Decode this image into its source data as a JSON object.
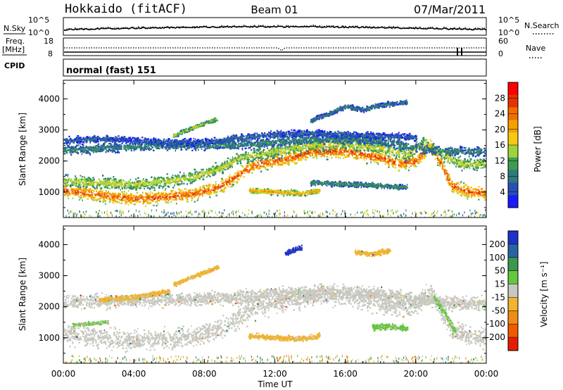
{
  "header": {
    "station": "Hokkaido (fitACF)",
    "beam": "Beam 01",
    "date": "07/Mar/2011"
  },
  "noise_panel": {
    "left_label": "N.Sky",
    "right_label": "N.Search",
    "ticks_left": [
      "10^5",
      "10^0"
    ],
    "ticks_right": [
      "10^5",
      "10^0"
    ]
  },
  "freq_panel": {
    "left_label": "Freq.",
    "left_unit": "[MHz]",
    "right_label": "Nave",
    "ticks_left": [
      "18",
      "8"
    ],
    "ticks_right": [
      "60",
      "0"
    ]
  },
  "cpid_panel": {
    "label": "CPID",
    "text": "normal (fast) 151"
  },
  "power_panel": {
    "ylabel": "Slant Range [km]",
    "yticks": [
      "1000",
      "2000",
      "3000",
      "4000"
    ],
    "colorbar_label": "Power [dB]",
    "colorbar_ticks": [
      "4",
      "8",
      "12",
      "16",
      "20",
      "24",
      "28"
    ],
    "colorbar_colors": [
      "#1a1aff",
      "#2850b4",
      "#2f7a7a",
      "#3c9c50",
      "#9fd23c",
      "#f5c814",
      "#f5a000",
      "#f06e00",
      "#e63200",
      "#ff0000"
    ]
  },
  "velocity_panel": {
    "ylabel": "Slant Range [km]",
    "yticks": [
      "1000",
      "2000",
      "3000",
      "4000"
    ],
    "colorbar_label": "Velocity [m s⁻¹]",
    "colorbar_ticks": [
      "200",
      "100",
      "50",
      "15",
      "-15",
      "-50",
      "-100",
      "-200"
    ],
    "colorbar_colors": [
      "#1e32c8",
      "#2864a0",
      "#3c9650",
      "#64c83c",
      "#c8c8c0",
      "#f0b432",
      "#f08c14",
      "#f05a00",
      "#e61e00"
    ]
  },
  "xaxis": {
    "label": "Time UT",
    "ticks": [
      "00:00",
      "04:00",
      "08:00",
      "12:00",
      "16:00",
      "20:00",
      "00:00"
    ]
  },
  "chart_data": [
    {
      "type": "heatmap",
      "title": "Power [dB]",
      "xlabel": "Time UT",
      "ylabel": "Slant Range [km]",
      "xlim": [
        0,
        24
      ],
      "ylim": [
        180,
        4600
      ],
      "clim": [
        0,
        32
      ],
      "bands": [
        {
          "x": [
            0,
            2,
            4,
            6,
            7.5,
            9,
            10,
            11,
            13,
            14,
            16,
            18,
            19,
            20,
            20.8,
            21.5,
            22,
            23,
            24
          ],
          "y": [
            1050,
            900,
            780,
            850,
            950,
            1200,
            1600,
            1900,
            2100,
            2300,
            2300,
            2100,
            1900,
            2000,
            2500,
            1800,
            1200,
            1000,
            950
          ],
          "width": 300,
          "value": 26
        },
        {
          "x": [
            0,
            2,
            4,
            6,
            7.5,
            9,
            10,
            12,
            14,
            16,
            18,
            19.5,
            20.5,
            21.5,
            22.5,
            24
          ],
          "y": [
            1350,
            1300,
            1250,
            1350,
            1500,
            1800,
            2100,
            2300,
            2500,
            2550,
            2400,
            2200,
            2600,
            2200,
            1900,
            1900
          ],
          "width": 260,
          "value": 16
        },
        {
          "x": [
            0,
            2,
            4,
            6,
            8,
            10,
            12,
            14,
            16,
            18,
            20,
            22,
            24
          ],
          "y": [
            2350,
            2400,
            2450,
            2500,
            2500,
            2500,
            2600,
            2700,
            2700,
            2650,
            2400,
            2300,
            2300
          ],
          "width": 200,
          "value": 9
        },
        {
          "x": [
            0,
            2,
            4,
            6,
            8,
            9,
            10,
            12,
            14,
            16,
            18,
            19,
            20
          ],
          "y": [
            2650,
            2700,
            2650,
            2600,
            2600,
            2650,
            2750,
            2850,
            2900,
            2850,
            2800,
            2800,
            2750
          ],
          "width": 150,
          "value": 6
        },
        {
          "x": [
            10.5,
            12,
            13.5,
            14.5
          ],
          "y": [
            1050,
            1000,
            950,
            1050
          ],
          "width": 120,
          "value": 21
        },
        {
          "x": [
            14,
            16,
            18,
            19.5
          ],
          "y": [
            1300,
            1250,
            1200,
            1150
          ],
          "width": 110,
          "value": 10
        },
        {
          "x": [
            6.2,
            7,
            8,
            8.7
          ],
          "y": [
            2800,
            3000,
            3200,
            3350
          ],
          "width": 90,
          "value": 15
        },
        {
          "x": [
            14,
            15,
            16,
            17,
            18,
            19.5
          ],
          "y": [
            3300,
            3500,
            3750,
            3650,
            3800,
            3900
          ],
          "width": 110,
          "value": 8
        }
      ]
    },
    {
      "type": "heatmap",
      "title": "Velocity [m s⁻¹]",
      "xlabel": "Time UT",
      "ylabel": "Slant Range [km]",
      "xlim": [
        0,
        24
      ],
      "ylim": [
        180,
        4600
      ],
      "clim": [
        -250,
        250
      ],
      "bands": [
        {
          "x": [
            0,
            2,
            4,
            6,
            7.5,
            9,
            10,
            11,
            13,
            14,
            16,
            18,
            19,
            20,
            20.8,
            21.5,
            22,
            23,
            24
          ],
          "y": [
            1100,
            1000,
            900,
            950,
            1050,
            1300,
            1700,
            2000,
            2200,
            2350,
            2350,
            2150,
            2000,
            2050,
            2500,
            1800,
            1250,
            1050,
            1000
          ],
          "width": 460,
          "value": 0
        },
        {
          "x": [
            0,
            4,
            8,
            10,
            12,
            14,
            16,
            18,
            20,
            22,
            24
          ],
          "y": [
            2150,
            2200,
            2250,
            2300,
            2400,
            2450,
            2450,
            2400,
            2200,
            2100,
            2100
          ],
          "width": 300,
          "value": 0
        },
        {
          "x": [
            10.5,
            12,
            13.5,
            14.5
          ],
          "y": [
            1050,
            1000,
            950,
            1050
          ],
          "width": 120,
          "value": -40
        },
        {
          "x": [
            17.5,
            18.5,
            19.5
          ],
          "y": [
            1350,
            1350,
            1300
          ],
          "width": 140,
          "value": 40
        },
        {
          "x": [
            21,
            21.6,
            22.2
          ],
          "y": [
            2300,
            1800,
            1200
          ],
          "width": 140,
          "value": 40
        },
        {
          "x": [
            6.2,
            7,
            8,
            8.8
          ],
          "y": [
            2700,
            2900,
            3100,
            3300
          ],
          "width": 90,
          "value": -40
        },
        {
          "x": [
            2,
            4,
            5,
            6
          ],
          "y": [
            2200,
            2300,
            2400,
            2500
          ],
          "width": 110,
          "value": -40
        },
        {
          "x": [
            12.5,
            13,
            13.5
          ],
          "y": [
            3700,
            3800,
            3900
          ],
          "width": 120,
          "value": 220
        },
        {
          "x": [
            16.5,
            17.5,
            18.5
          ],
          "y": [
            3750,
            3700,
            3800
          ],
          "width": 120,
          "value": -60
        },
        {
          "x": [
            0.5,
            1.5,
            2.5
          ],
          "y": [
            1400,
            1450,
            1500
          ],
          "width": 80,
          "value": 30
        }
      ]
    }
  ]
}
